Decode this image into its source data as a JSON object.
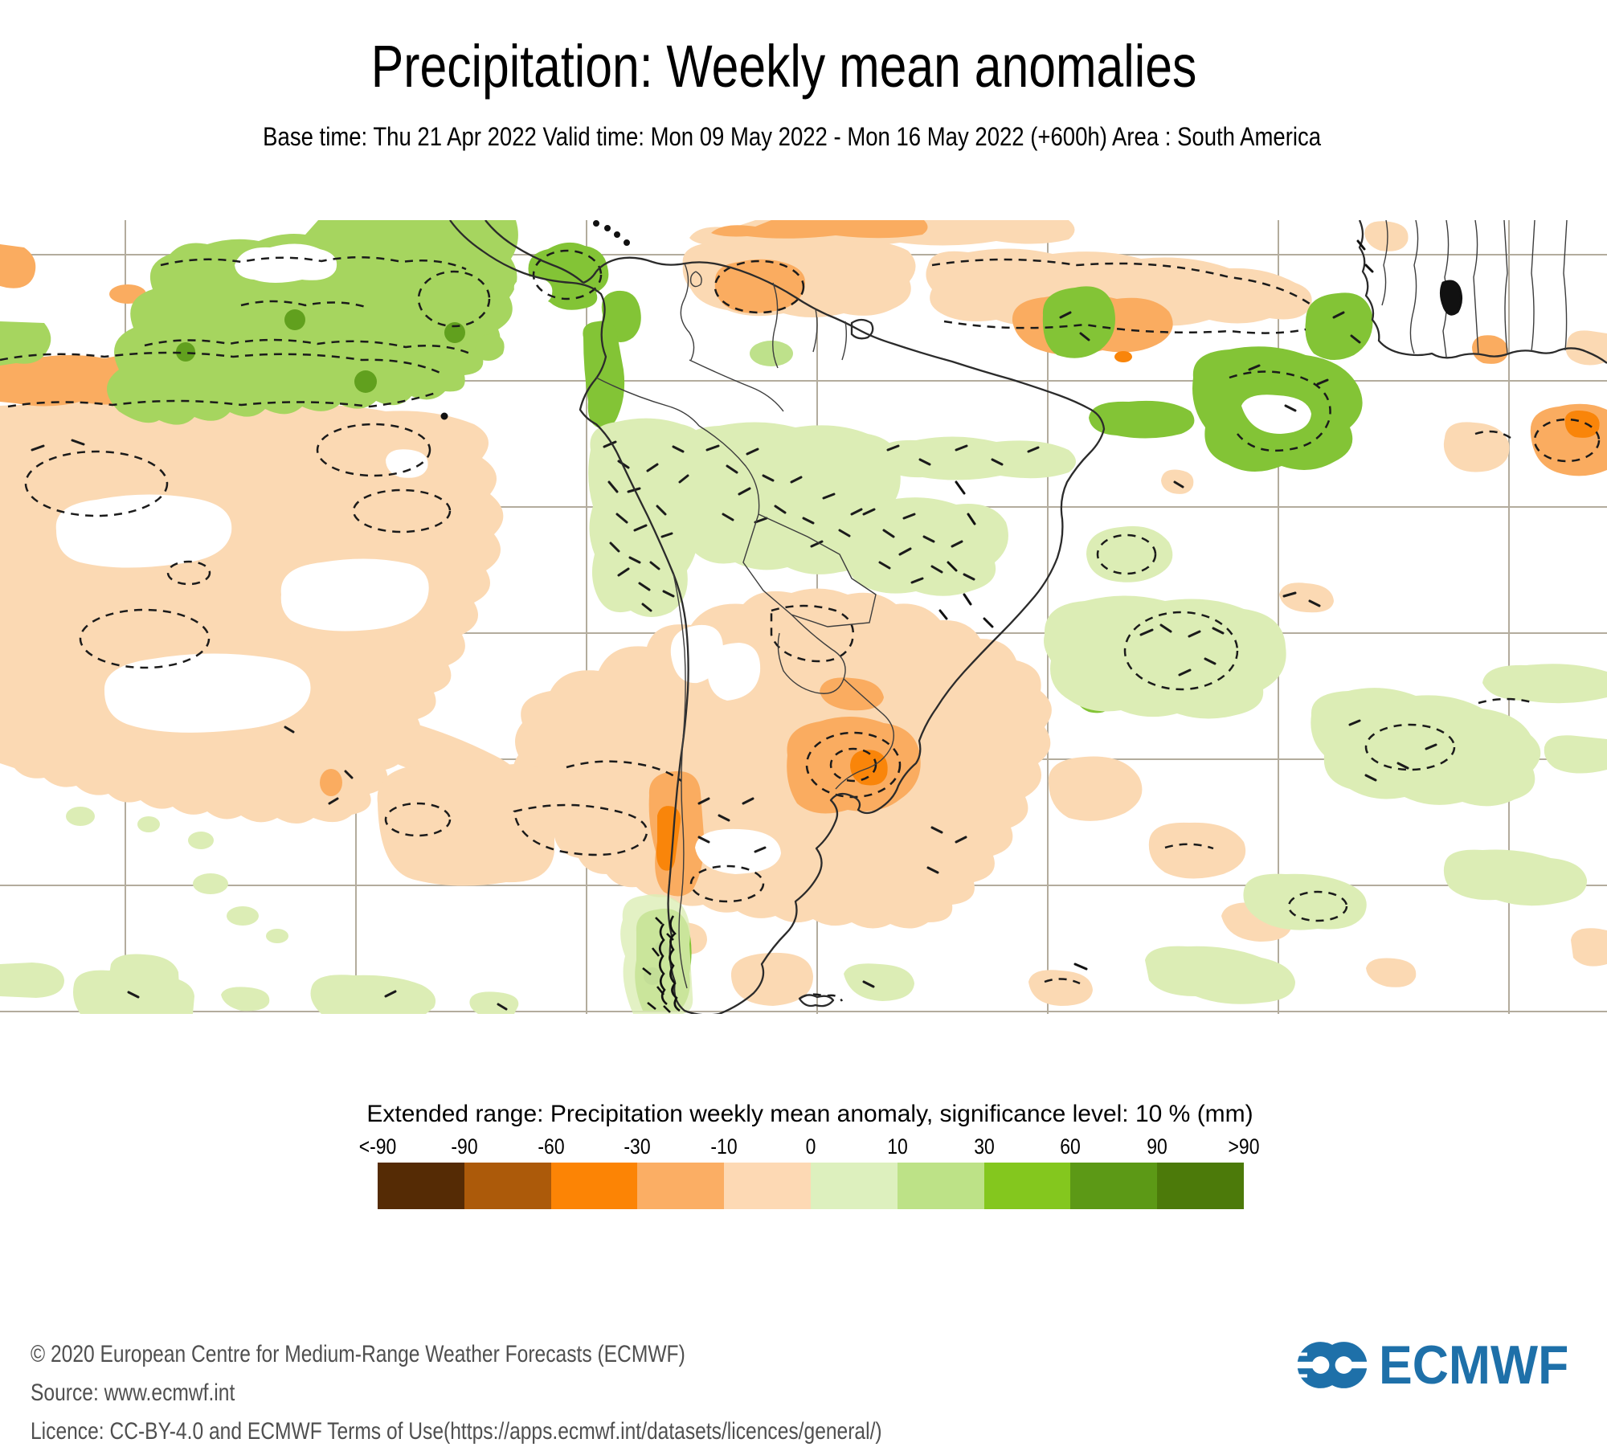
{
  "header": {
    "title": "Precipitation: Weekly mean anomalies",
    "subtitle": "Base time: Thu 21 Apr 2022 Valid time: Mon 09 May 2022 - Mon 16 May 2022 (+600h) Area : South America"
  },
  "legend": {
    "title": "Extended range: Precipitation weekly mean anomaly, significance level: 10 % (mm)",
    "tick_labels": [
      "<-90",
      "-90",
      "-60",
      "-30",
      "-10",
      "0",
      "10",
      "30",
      "60",
      "90",
      ">90"
    ],
    "levels": [
      -90,
      -60,
      -30,
      -10,
      0,
      10,
      30,
      60,
      90
    ],
    "colors": [
      "#552B05",
      "#AC5A0A",
      "#FC8405",
      "#FBAE64",
      "#FDD9B4",
      "#DDF0BE",
      "#BDE287",
      "#84C71E",
      "#5C9916",
      "#4C7A0A"
    ],
    "units": "mm"
  },
  "map_colors": {
    "pale_orange": "#FBD9B3",
    "medium_orange": "#FAAC60",
    "bright_orange": "#F9850A",
    "pale_green": "#DCEDB5",
    "light_green": "#BEE18B",
    "band_green": "#A6D55F",
    "bright_green": "#83C436",
    "dark_green": "#61A01E",
    "gridline": "#B3AC9D",
    "coastline": "#2B2B2B"
  },
  "footer": {
    "lines": [
      "© 2020 European Centre for Medium-Range Weather Forecasts (ECMWF)",
      "Source: www.ecmwf.int",
      "Licence: CC-BY-4.0 and ECMWF Terms of Use(https://apps.ecmwf.int/datasets/licences/general/)"
    ]
  },
  "logo": {
    "text": "ECMWF",
    "color": "#1E70A9"
  }
}
